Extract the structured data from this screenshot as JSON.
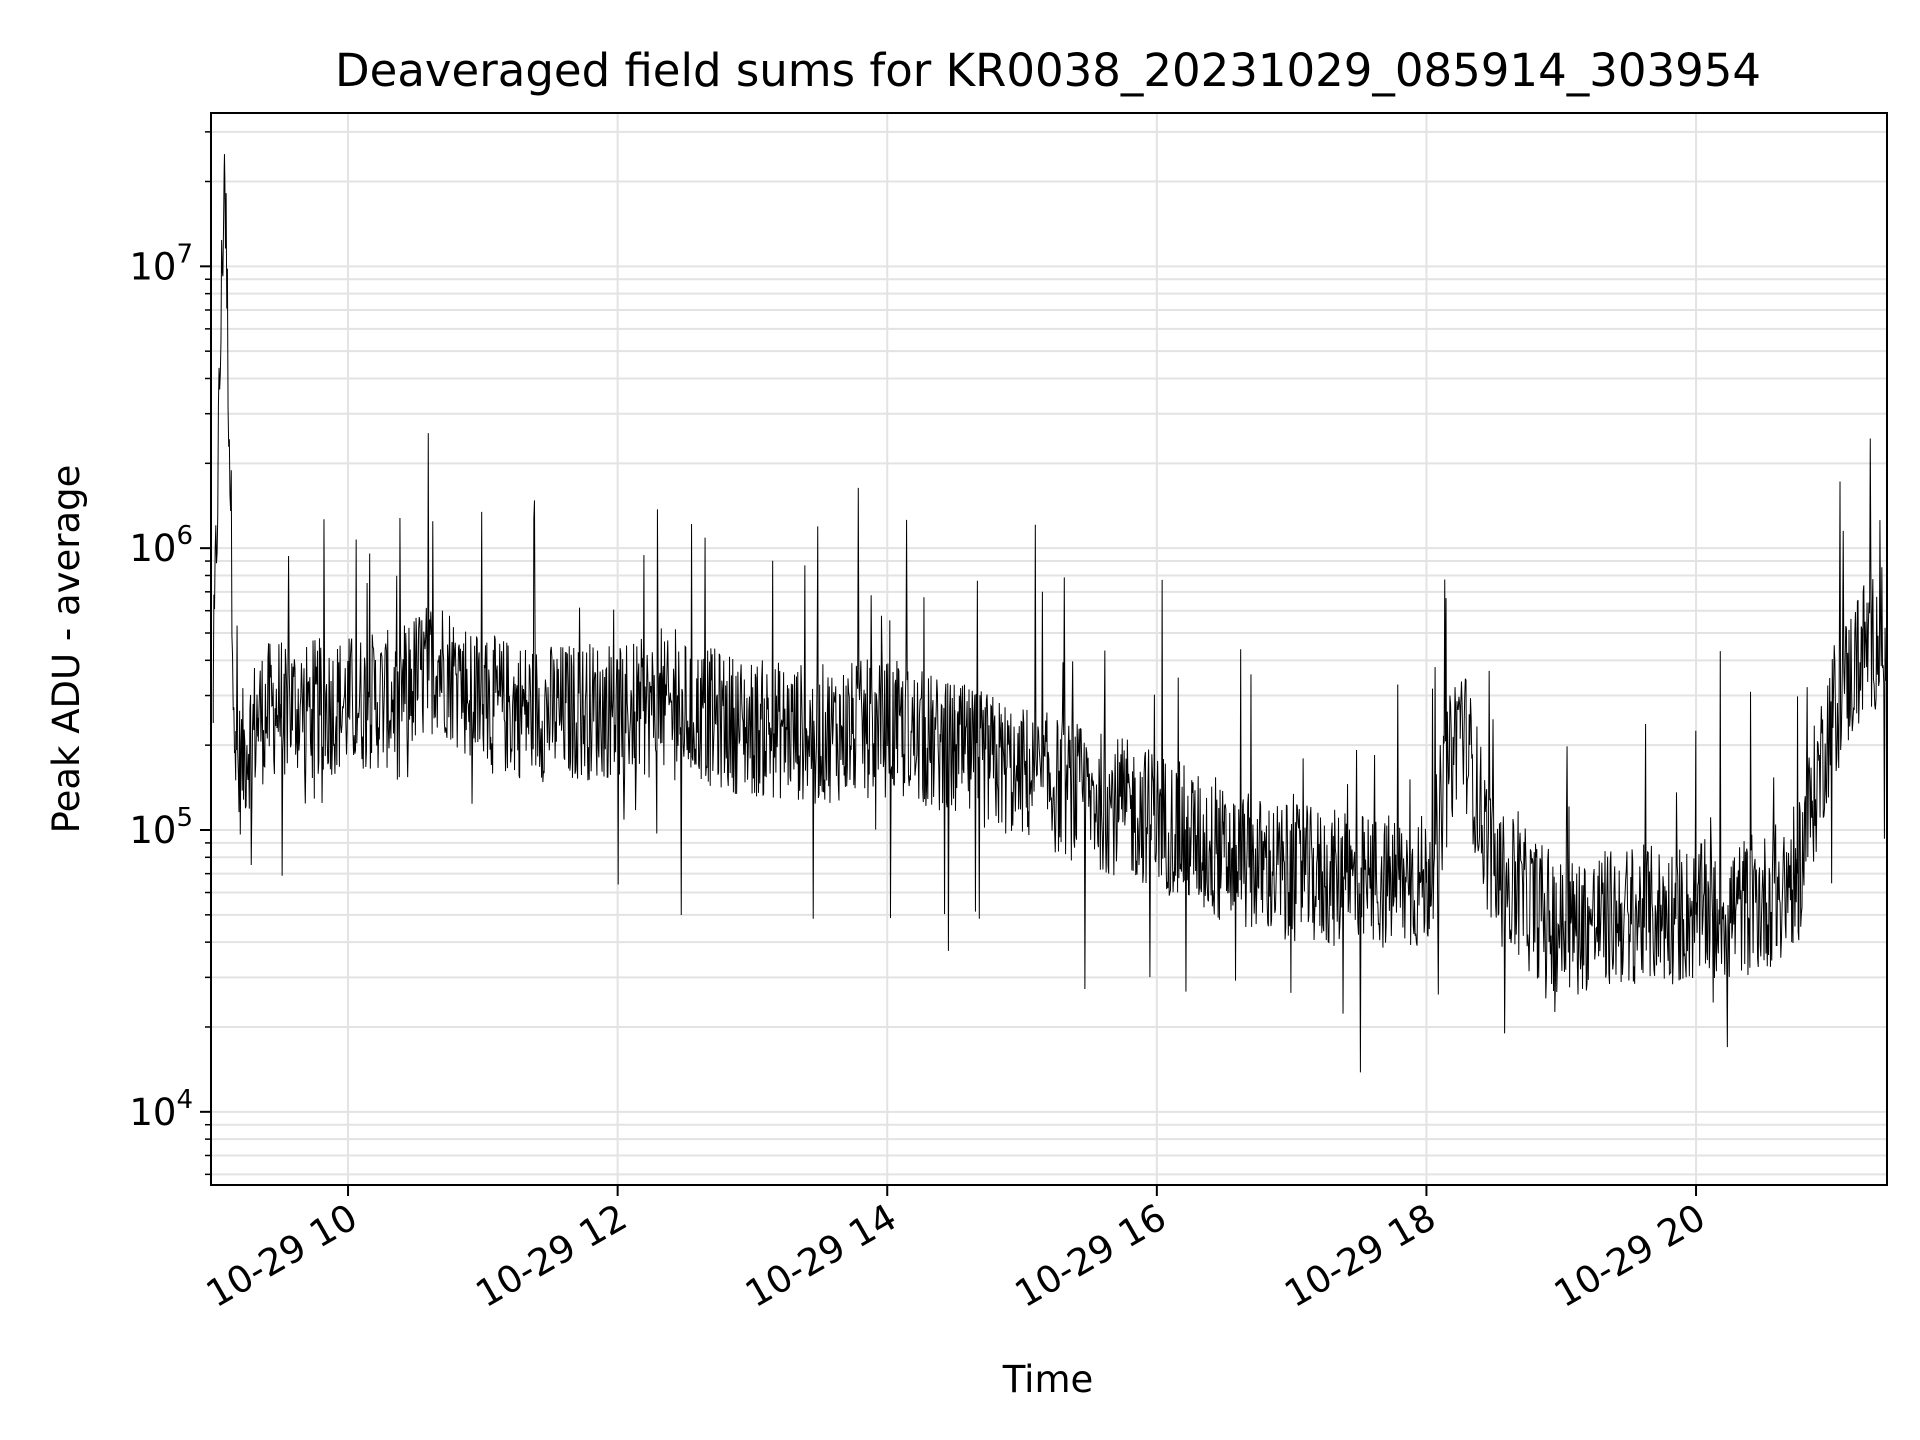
{
  "chart_data": {
    "type": "line",
    "title": "Deaveraged field sums for KR0038_20231029_085914_303954",
    "xlabel": "Time",
    "ylabel": "Peak ADU - average",
    "yscale": "log",
    "ylim": [
      5500,
      35000000
    ],
    "xlim": [
      "2023-10-29 08:59",
      "2023-10-29 21:25"
    ],
    "grid": true,
    "x_tick_labels": [
      "10-29 10",
      "10-29 12",
      "10-29 14",
      "10-29 16",
      "10-29 18",
      "10-29 20"
    ],
    "y_tick_labels": [
      {
        "base": "10",
        "exp": "4"
      },
      {
        "base": "10",
        "exp": "5"
      },
      {
        "base": "10",
        "exp": "6"
      },
      {
        "base": "10",
        "exp": "7"
      }
    ],
    "line_color": "#000000",
    "series": [
      {
        "x": [
          "2023-10-29 09:00",
          "2023-10-29 09:05",
          "2023-10-29 09:10",
          "2023-10-29 09:15",
          "2023-10-29 09:20",
          "2023-10-29 09:30",
          "2023-10-29 09:45",
          "2023-10-29 10:00",
          "2023-10-29 10:20",
          "2023-10-29 10:40",
          "2023-10-29 11:00",
          "2023-10-29 11:30",
          "2023-10-29 12:00",
          "2023-10-29 12:30",
          "2023-10-29 13:00",
          "2023-10-29 13:30",
          "2023-10-29 14:00",
          "2023-10-29 14:30",
          "2023-10-29 15:00",
          "2023-10-29 15:30",
          "2023-10-29 16:00",
          "2023-10-29 16:30",
          "2023-10-29 17:00",
          "2023-10-29 17:30",
          "2023-10-29 18:00",
          "2023-10-29 18:15",
          "2023-10-29 18:30",
          "2023-10-29 19:00",
          "2023-10-29 19:30",
          "2023-10-29 20:00",
          "2023-10-29 20:30",
          "2023-10-29 20:45",
          "2023-10-29 21:00",
          "2023-10-29 21:15",
          "2023-10-29 21:25"
        ],
        "y": [
          300000,
          25000000,
          150000,
          200000,
          250000,
          280000,
          270000,
          280000,
          290000,
          400000,
          280000,
          260000,
          270000,
          265000,
          230000,
          220000,
          230000,
          190000,
          160000,
          130000,
          110000,
          80000,
          70000,
          65000,
          65000,
          260000,
          70000,
          45000,
          50000,
          50000,
          55000,
          70000,
          250000,
          450000,
          500000
        ]
      }
    ]
  }
}
